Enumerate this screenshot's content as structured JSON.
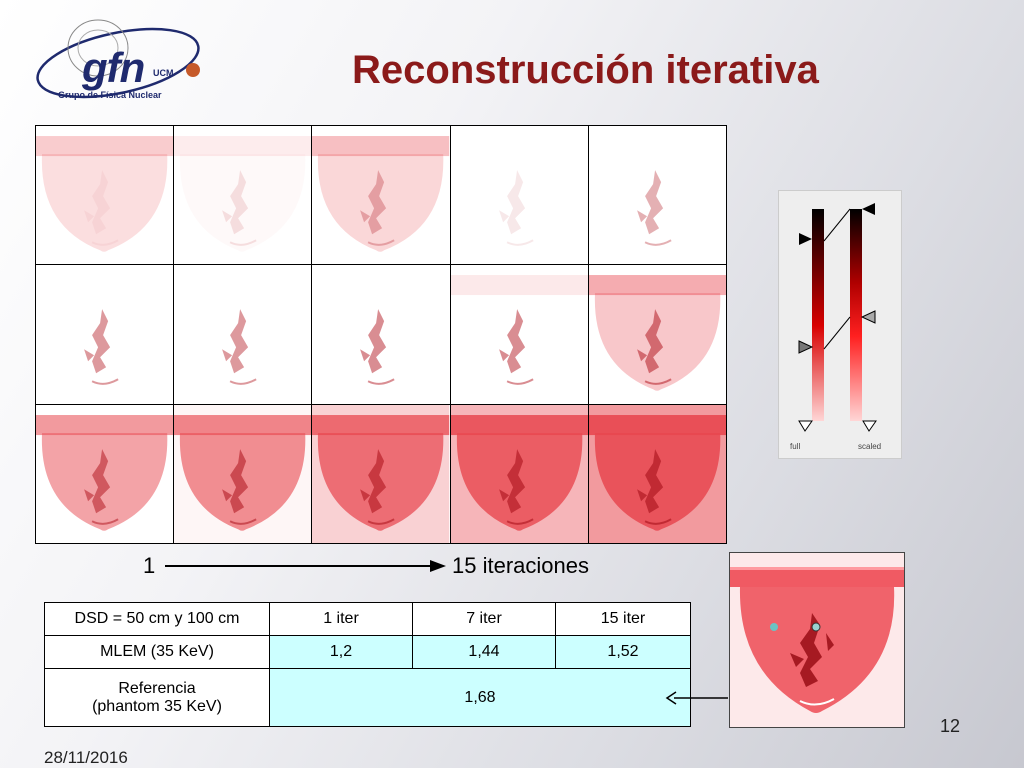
{
  "logo": {
    "text": "gfn",
    "ucm": "UCM",
    "subtitle": "Grupo de Física Nuclear"
  },
  "title": "Reconstrucción iterativa",
  "colorbar": {
    "full_label": "full",
    "scaled_label": "scaled"
  },
  "iterations": {
    "start_label": "1",
    "end_label": "15 iteraciones"
  },
  "table": {
    "header": [
      "DSD = 50 cm y 100 cm",
      "1 iter",
      "7 iter",
      "15 iter"
    ],
    "mlem": {
      "label": "MLEM (35 KeV)",
      "values": [
        "1,2",
        "1,44",
        "1,52"
      ]
    },
    "reference": {
      "label_line1": "Referencia",
      "label_line2": "(phantom 35 KeV)",
      "value": "1,68"
    }
  },
  "page_number": "12",
  "date": "28/11/2016",
  "colors": {
    "title": "#8b1a1a",
    "table_highlight": "#ccffff",
    "logo": "#1f2a6e",
    "phantom_red": "#e8474f"
  }
}
